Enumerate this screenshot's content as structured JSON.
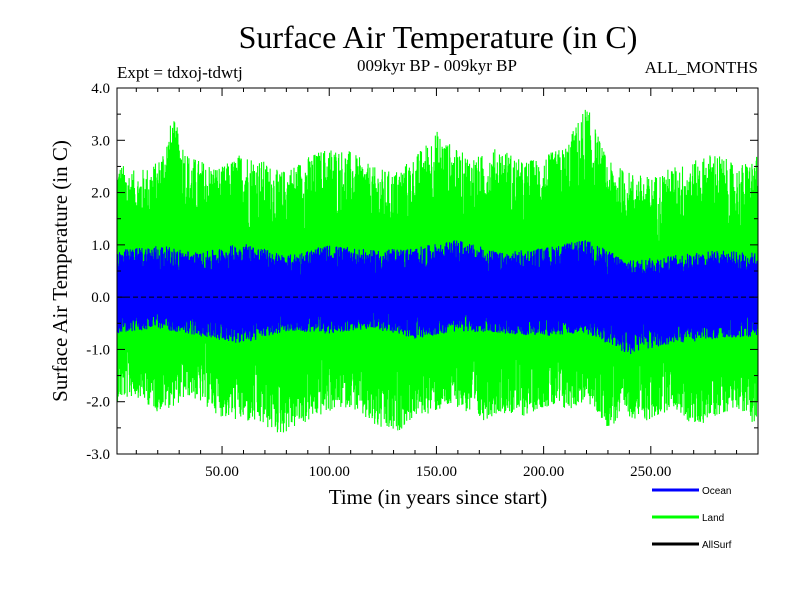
{
  "chart_data": {
    "type": "line",
    "title": "Surface Air Temperature (in C)",
    "subtitle_left": "Expt = tdxoj-tdwtj",
    "subtitle_center": "009kyr BP - 009kyr BP",
    "subtitle_right": "ALL_MONTHS",
    "xlabel": "Time (in years since start)",
    "ylabel": "Surface Air Temperature (in C)",
    "xlim": [
      1,
      300
    ],
    "ylim": [
      -3.0,
      4.0
    ],
    "x_ticks": [
      50,
      100,
      150,
      200,
      250
    ],
    "x_tick_labels": [
      "50.00",
      "100.00",
      "150.00",
      "200.00",
      "250.00"
    ],
    "y_ticks": [
      -3,
      -2,
      -1,
      0,
      1,
      2,
      3,
      4
    ],
    "y_tick_labels": [
      "-3.0",
      "-2.0",
      "-1.0",
      "0.0",
      "1.0",
      "2.0",
      "3.0",
      "4.0"
    ],
    "zero_line": 0.0,
    "series": [
      {
        "name": "Land",
        "color": "#00ff00",
        "envelope_x": [
          1,
          10,
          20,
          27,
          35,
          50,
          60,
          70,
          77,
          90,
          100,
          110,
          120,
          130,
          140,
          150,
          160,
          170,
          180,
          190,
          200,
          210,
          220,
          230,
          240,
          250,
          260,
          270,
          280,
          290,
          300
        ],
        "upper": [
          2.6,
          2.4,
          2.6,
          3.45,
          2.7,
          2.5,
          2.8,
          2.6,
          2.4,
          2.7,
          2.9,
          2.8,
          2.5,
          2.4,
          2.7,
          3.2,
          2.8,
          2.7,
          2.9,
          2.6,
          2.7,
          2.9,
          3.7,
          2.6,
          2.4,
          2.3,
          2.5,
          2.6,
          2.8,
          2.5,
          2.7
        ],
        "lower": [
          -2.0,
          -1.9,
          -2.2,
          -2.1,
          -1.9,
          -2.3,
          -2.4,
          -2.5,
          -2.65,
          -2.4,
          -2.2,
          -2.1,
          -2.5,
          -2.65,
          -2.3,
          -2.2,
          -2.1,
          -2.4,
          -2.2,
          -2.3,
          -2.1,
          -2.2,
          -2.0,
          -2.5,
          -2.3,
          -2.4,
          -2.1,
          -2.5,
          -2.3,
          -2.1,
          -2.5
        ]
      },
      {
        "name": "Ocean",
        "color": "#0000ff",
        "envelope_x": [
          1,
          20,
          40,
          60,
          80,
          100,
          120,
          140,
          160,
          180,
          200,
          220,
          240,
          260,
          280,
          300
        ],
        "upper": [
          0.9,
          1.0,
          0.85,
          1.05,
          0.8,
          1.0,
          0.9,
          0.95,
          1.1,
          0.85,
          0.95,
          1.1,
          0.7,
          0.8,
          0.9,
          0.85
        ],
        "lower": [
          -0.7,
          -0.6,
          -0.75,
          -0.9,
          -0.65,
          -0.7,
          -0.6,
          -0.8,
          -0.65,
          -0.7,
          -0.75,
          -0.7,
          -1.1,
          -0.9,
          -0.8,
          -0.75
        ]
      },
      {
        "name": "AllSurf",
        "color": "#000000",
        "values": []
      }
    ],
    "legend_position": "bottom-right"
  }
}
